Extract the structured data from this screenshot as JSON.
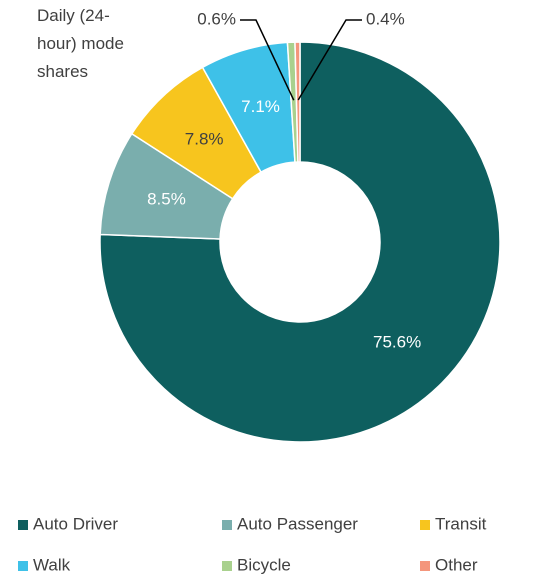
{
  "chart_data": {
    "type": "donut",
    "title": "Daily (24-hour) mode shares",
    "categories": [
      "Auto Driver",
      "Auto Passenger",
      "Transit",
      "Walk",
      "Bicycle",
      "Other"
    ],
    "values": [
      75.6,
      8.5,
      7.8,
      7.1,
      0.6,
      0.4
    ],
    "value_labels": [
      "75.6%",
      "8.5%",
      "7.8%",
      "7.1%",
      "0.6%",
      "0.4%"
    ],
    "colors": [
      "#0e5f5f",
      "#7aaead",
      "#f7c51e",
      "#3ec1e8",
      "#a9d18e",
      "#f4967c"
    ],
    "legend": "bottom"
  }
}
